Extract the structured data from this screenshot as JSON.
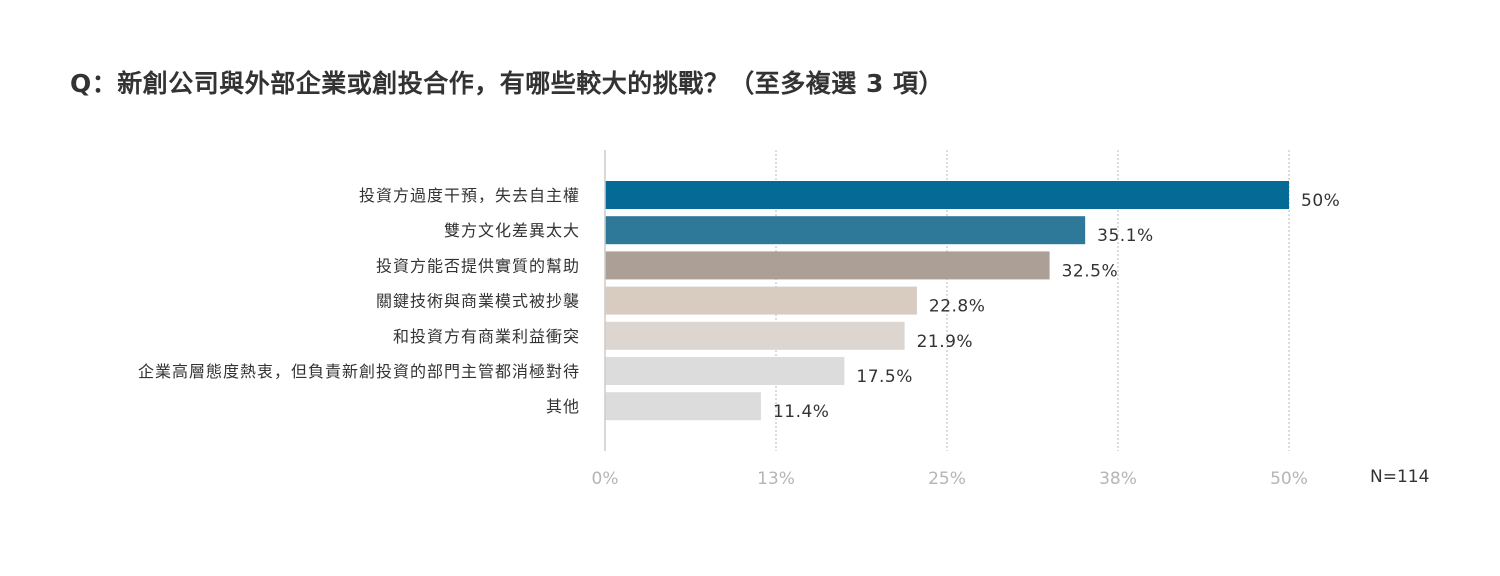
{
  "title": "Q：新創公司與外部企業或創投合作，有哪些較大的挑戰？（至多複選 3 項）",
  "sample_note": "N=114",
  "chart_data": {
    "type": "bar",
    "orientation": "horizontal",
    "title": "Q：新創公司與外部企業或創投合作，有哪些較大的挑戰？（至多複選 3 項）",
    "categories": [
      "投資方過度干預，失去自主權",
      "雙方文化差異太大",
      "投資方能否提供實質的幫助",
      "關鍵技術與商業模式被抄襲",
      "和投資方有商業利益衝突",
      "企業高層態度熱衷，但負責新創投資的部門主管都消極對待",
      "其他"
    ],
    "values": [
      50,
      35.1,
      32.5,
      22.8,
      21.9,
      17.5,
      11.4
    ],
    "value_labels": [
      "50%",
      "35.1%",
      "32.5%",
      "22.8%",
      "21.9%",
      "17.5%",
      "11.4%"
    ],
    "bar_colors": [
      "#056b96",
      "#2e7899",
      "#aca096",
      "#d8cbc0",
      "#ddd5cf",
      "#dcdcdc",
      "#dcdcdc"
    ],
    "xlim": [
      0,
      50
    ],
    "x_ticks": [
      0,
      12.5,
      25,
      37.5,
      50
    ],
    "x_tick_labels": [
      "0%",
      "13%",
      "25%",
      "38%",
      "50%"
    ],
    "grid": true,
    "xlabel": "",
    "ylabel": ""
  }
}
